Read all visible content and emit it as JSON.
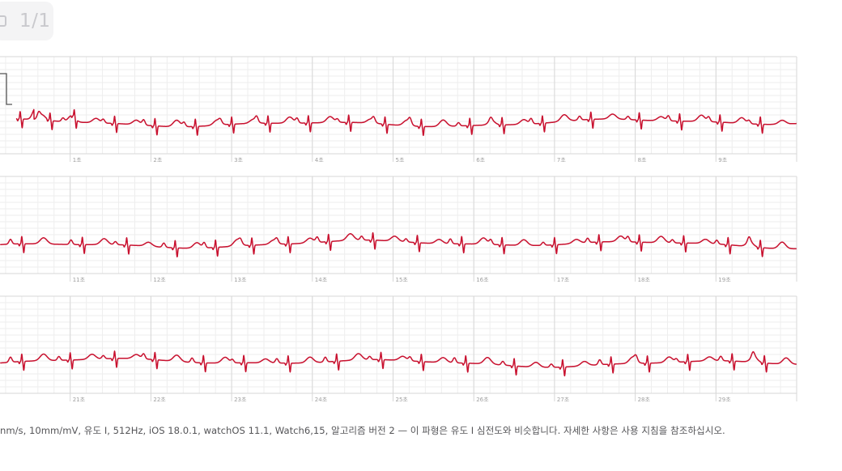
{
  "page_indicator": "1/1",
  "colors": {
    "trace": "#c8102e",
    "grid_minor": "#eeeeee",
    "grid_major": "#d7d7d7",
    "tick_text": "#a0a0a0"
  },
  "chart_data": {
    "type": "line",
    "xlabel": "",
    "ylabel": "",
    "grid": true,
    "strips": [
      {
        "x_range": [
          0,
          10
        ],
        "tick_labels": [
          "1초",
          "2초",
          "3초",
          "4초",
          "5초",
          "6초",
          "7초",
          "8초",
          "9초"
        ],
        "tick_values": [
          1,
          2,
          3,
          4,
          5,
          6,
          7,
          8,
          9
        ]
      },
      {
        "x_range": [
          10,
          20
        ],
        "tick_labels": [
          "11초",
          "12초",
          "13초",
          "14초",
          "15초",
          "16초",
          "17초",
          "18초",
          "19초"
        ],
        "tick_values": [
          11,
          12,
          13,
          14,
          15,
          16,
          17,
          18,
          19
        ]
      },
      {
        "x_range": [
          20,
          30
        ],
        "tick_labels": [
          "21초",
          "22초",
          "23초",
          "24초",
          "25초",
          "26초",
          "27초",
          "28초",
          "29초"
        ],
        "tick_values": [
          21,
          22,
          23,
          24,
          25,
          26,
          27,
          28,
          29
        ]
      }
    ],
    "beats_seconds": [
      [
        0.38,
        0.75,
        1.05,
        1.55,
        2.05,
        2.55,
        3.0,
        3.45,
        3.95,
        4.45,
        4.9,
        5.35,
        5.95,
        6.35,
        6.85,
        7.45,
        8.05,
        8.55,
        9.05,
        9.55
      ],
      [
        10.4,
        11.15,
        11.7,
        12.3,
        12.8,
        13.25,
        13.7,
        14.2,
        14.75,
        15.3,
        15.85,
        16.35,
        17.0,
        17.55,
        18.05,
        18.6,
        19.15,
        19.55
      ],
      [
        20.4,
        21.0,
        21.55,
        22.05,
        22.65,
        23.15,
        23.7,
        24.3,
        24.85,
        25.35,
        25.9,
        26.5,
        27.1,
        27.7,
        28.15,
        28.65,
        29.2,
        29.6
      ]
    ]
  },
  "footer": {
    "note": "nm/s, 10mm/mV, 유도 I, 512Hz, iOS 18.0.1, watchOS 11.1, Watch6,15, 알고리즘 버전 2 — 이 파형은 유도 I 심전도와 비슷합니다. 자세한 사항은 사용 지침을 참조하십시오."
  }
}
